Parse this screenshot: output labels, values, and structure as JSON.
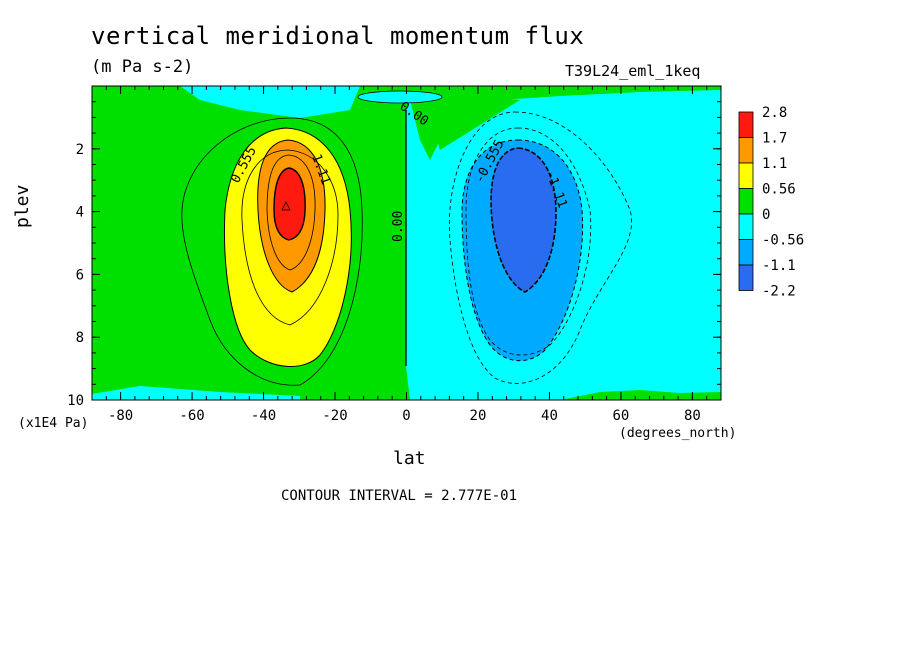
{
  "chart_data": {
    "type": "heatmap",
    "title": "vertical meridional momentum flux",
    "subtitle": "(m Pa s-2)",
    "run_label": "T39L24_eml_1keq",
    "xlabel": "lat",
    "xunit": "(degrees_north)",
    "ylabel": "plev",
    "yunit": "(x1E4 Pa)",
    "x_ticks": [
      -80,
      -60,
      -40,
      -20,
      0,
      20,
      40,
      60,
      80
    ],
    "y_ticks": [
      2,
      4,
      6,
      8,
      10
    ],
    "xlim": [
      -88,
      88
    ],
    "ylim": [
      10,
      0
    ],
    "contour_interval_text": "CONTOUR INTERVAL = 2.777E-01",
    "contour_labels": [
      "0.555",
      "1.11",
      "0.00",
      "0.00",
      "-0.555",
      "-1.11"
    ],
    "colorbar": {
      "levels": [
        "2.8",
        "1.7",
        "1.1",
        "0.56",
        "0",
        "-0.56",
        "-1.1",
        "-2.2"
      ],
      "colors": [
        "#ff1a10",
        "#ff9900",
        "#ffff00",
        "#00e000",
        "#00ffff",
        "#00aaff",
        "#2a6cf0"
      ]
    },
    "features": [
      {
        "name": "positive maximum",
        "lat": -33,
        "plev": 4,
        "value_range": "1.7 to 2.8"
      },
      {
        "name": "negative minimum",
        "lat": 33,
        "plev": 4,
        "value_range": "-2.2 to -1.1"
      }
    ],
    "colors": {
      "positive_max": "#ff1a10",
      "negative_min": "#2a6cf0",
      "zero_band": "#00e000"
    }
  }
}
